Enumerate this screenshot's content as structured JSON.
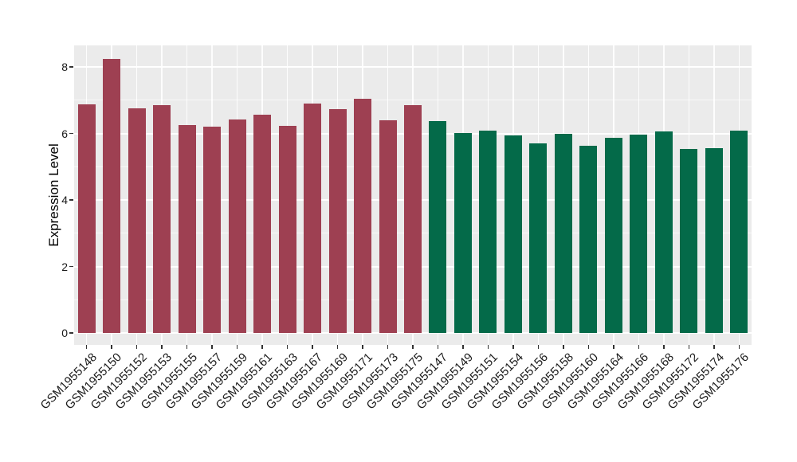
{
  "figure": {
    "background": "#FFFFFF"
  },
  "chart_data": {
    "type": "bar",
    "title": "",
    "xlabel": "",
    "ylabel": "Expression Level",
    "ylim": [
      0,
      8.65
    ],
    "yticks": [
      0,
      2,
      4,
      6,
      8
    ],
    "yticks_minor": [
      1,
      3,
      5,
      7
    ],
    "grid": "white major and minor horizontal lines plus vertical line at each category center, on gray panel",
    "legend_position": "none",
    "panel_bg": "#EBEBEB",
    "gridline_color": "#FFFFFF",
    "tick_mark_color": "#333333",
    "axis_text_color": "#1A1A1A",
    "group_colors": {
      "red": "#9E4052",
      "green": "#046A49"
    },
    "categories": [
      "GSM1955148",
      "GSM1955150",
      "GSM1955152",
      "GSM1955153",
      "GSM1955155",
      "GSM1955157",
      "GSM1955159",
      "GSM1955161",
      "GSM1955163",
      "GSM1955167",
      "GSM1955169",
      "GSM1955171",
      "GSM1955173",
      "GSM1955175",
      "GSM1955147",
      "GSM1955149",
      "GSM1955151",
      "GSM1955154",
      "GSM1955156",
      "GSM1955158",
      "GSM1955160",
      "GSM1955164",
      "GSM1955166",
      "GSM1955168",
      "GSM1955172",
      "GSM1955174",
      "GSM1955176"
    ],
    "values": [
      6.87,
      8.25,
      6.75,
      6.85,
      6.24,
      6.21,
      6.43,
      6.57,
      6.22,
      6.89,
      6.72,
      7.05,
      6.39,
      6.84,
      6.36,
      6.01,
      6.08,
      5.94,
      5.7,
      6.0,
      5.62,
      5.87,
      5.96,
      6.06,
      5.53,
      5.55,
      6.08
    ],
    "groups": [
      "red",
      "red",
      "red",
      "red",
      "red",
      "red",
      "red",
      "red",
      "red",
      "red",
      "red",
      "red",
      "red",
      "red",
      "green",
      "green",
      "green",
      "green",
      "green",
      "green",
      "green",
      "green",
      "green",
      "green",
      "green",
      "green",
      "green"
    ]
  }
}
